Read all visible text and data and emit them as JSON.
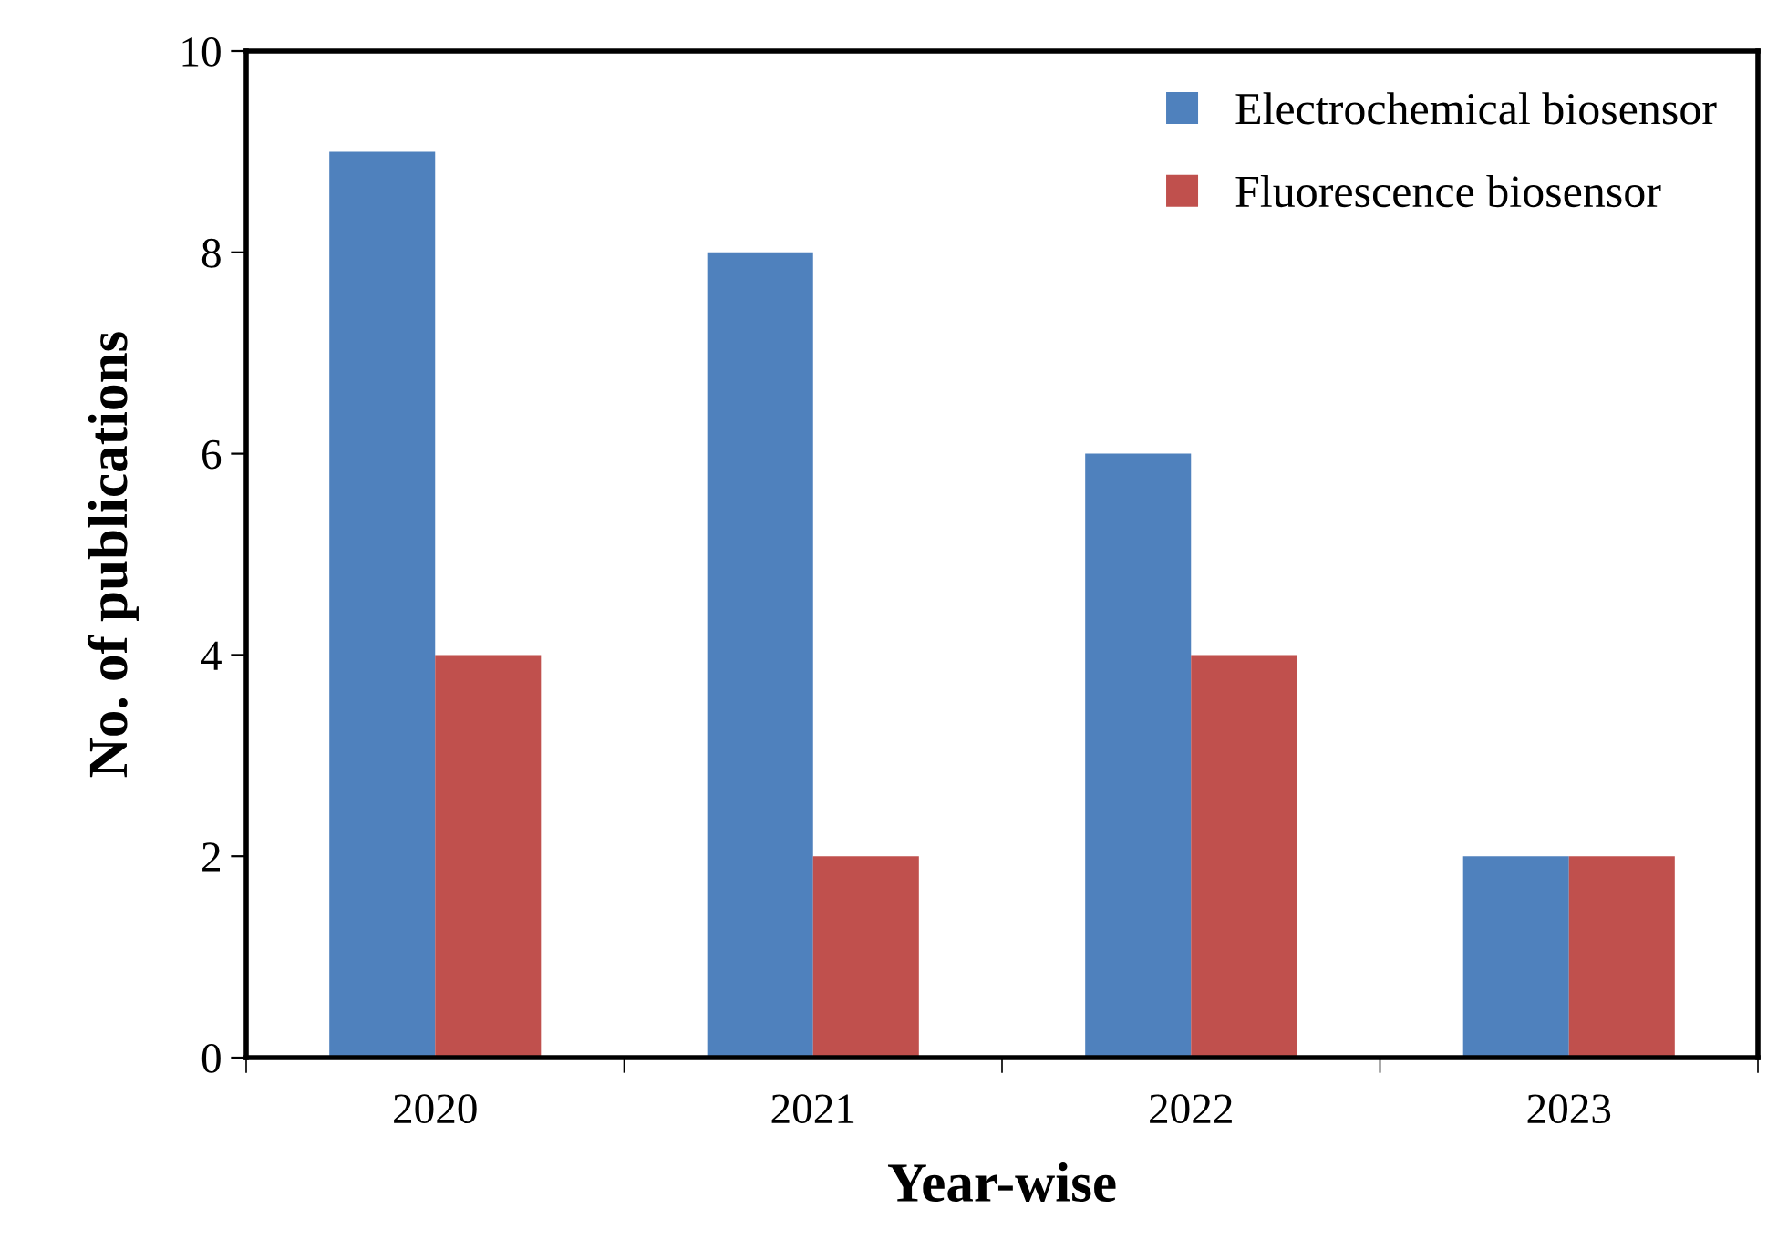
{
  "chart_data": {
    "type": "bar",
    "xlabel": "Year-wise",
    "ylabel": "No. of publications",
    "categories": [
      "2020",
      "2021",
      "2022",
      "2023"
    ],
    "series": [
      {
        "name": "Electrochemical biosensor",
        "color": "#4f81bd",
        "values": [
          9,
          8,
          6,
          2
        ]
      },
      {
        "name": "Fluorescence biosensor",
        "color": "#c0504d",
        "values": [
          4,
          2,
          4,
          2
        ]
      }
    ],
    "ylim": [
      0,
      10
    ],
    "yticks": [
      0,
      2,
      4,
      6,
      8,
      10
    ],
    "grid": false,
    "legend": "top right"
  }
}
